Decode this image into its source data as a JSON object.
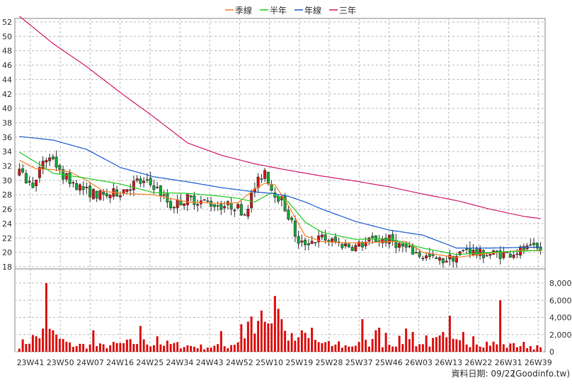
{
  "chart_data": {
    "type": "candlestick+volume",
    "legend": {
      "placement": "top-center",
      "items": [
        {
          "key": "ma_quarter",
          "label": "季線",
          "color": "#ff7f27"
        },
        {
          "key": "ma_half",
          "label": "半年",
          "color": "#22cc22"
        },
        {
          "key": "ma_year",
          "label": "年線",
          "color": "#1f5fd0"
        },
        {
          "key": "ma_3year",
          "label": "三年",
          "color": "#d01f6f"
        }
      ]
    },
    "price_axis": {
      "min": 18,
      "max": 52,
      "ticks": [
        18,
        20,
        22,
        24,
        26,
        28,
        30,
        32,
        34,
        36,
        38,
        40,
        42,
        44,
        46,
        48,
        50,
        52
      ]
    },
    "volume_axis": {
      "min": 0,
      "max": 8000,
      "ticks": [
        0,
        2000,
        4000,
        6000,
        8000
      ],
      "tick_labels": [
        "0",
        "2,000",
        "4,000",
        "6,000",
        "8,000"
      ]
    },
    "x_axis_labels": [
      "23W41",
      "23W50",
      "24W07",
      "24W16",
      "24W25",
      "24W34",
      "24W43",
      "24W52",
      "25W10",
      "25W19",
      "25W28",
      "25W37",
      "25W46",
      "26W03",
      "26W13",
      "26W22",
      "26W31",
      "26W39"
    ],
    "weeks": 156,
    "grid": true,
    "series": {
      "ma_3year": {
        "points": [
          [
            0,
            52.8
          ],
          [
            10,
            49.0
          ],
          [
            20,
            45.8
          ],
          [
            30,
            42.2
          ],
          [
            40,
            38.8
          ],
          [
            50,
            35.2
          ],
          [
            60,
            33.5
          ],
          [
            70,
            32.3
          ],
          [
            80,
            31.4
          ],
          [
            90,
            30.6
          ],
          [
            100,
            29.9
          ],
          [
            110,
            29.1
          ],
          [
            120,
            28.1
          ],
          [
            130,
            27.2
          ],
          [
            140,
            26.0
          ],
          [
            150,
            25.0
          ],
          [
            155,
            24.7
          ]
        ]
      },
      "ma_year": {
        "points": [
          [
            0,
            36.1
          ],
          [
            10,
            35.6
          ],
          [
            20,
            34.3
          ],
          [
            30,
            31.8
          ],
          [
            40,
            30.5
          ],
          [
            50,
            29.8
          ],
          [
            60,
            29.0
          ],
          [
            70,
            28.4
          ],
          [
            75,
            28.2
          ],
          [
            80,
            27.8
          ],
          [
            85,
            27.0
          ],
          [
            90,
            26.0
          ],
          [
            100,
            24.3
          ],
          [
            110,
            23.1
          ],
          [
            120,
            22.4
          ],
          [
            130,
            20.6
          ],
          [
            140,
            20.6
          ],
          [
            150,
            20.7
          ],
          [
            155,
            20.7
          ]
        ]
      },
      "ma_half": {
        "points": [
          [
            0,
            33.9
          ],
          [
            5,
            32.5
          ],
          [
            10,
            31.0
          ],
          [
            20,
            30.3
          ],
          [
            30,
            29.5
          ],
          [
            40,
            28.3
          ],
          [
            50,
            28.2
          ],
          [
            60,
            27.8
          ],
          [
            65,
            27.5
          ],
          [
            70,
            27.0
          ],
          [
            75,
            28.3
          ],
          [
            80,
            27.0
          ],
          [
            85,
            24.2
          ],
          [
            90,
            22.8
          ],
          [
            100,
            21.8
          ],
          [
            110,
            21.9
          ],
          [
            120,
            20.6
          ],
          [
            130,
            19.7
          ],
          [
            140,
            20.0
          ],
          [
            150,
            20.2
          ],
          [
            155,
            20.3
          ]
        ]
      },
      "ma_quarter": {
        "points": [
          [
            0,
            32.8
          ],
          [
            5,
            31.6
          ],
          [
            10,
            31.5
          ],
          [
            15,
            31.2
          ],
          [
            20,
            30.0
          ],
          [
            25,
            28.5
          ],
          [
            30,
            28.2
          ],
          [
            40,
            28.0
          ],
          [
            50,
            27.0
          ],
          [
            60,
            26.8
          ],
          [
            65,
            26.9
          ],
          [
            70,
            28.8
          ],
          [
            73,
            29.6
          ],
          [
            76,
            29.4
          ],
          [
            80,
            26.5
          ],
          [
            85,
            22.3
          ],
          [
            90,
            21.5
          ],
          [
            100,
            21.3
          ],
          [
            110,
            21.5
          ],
          [
            115,
            21.5
          ],
          [
            120,
            20.0
          ],
          [
            130,
            19.3
          ],
          [
            140,
            19.9
          ],
          [
            150,
            20.3
          ],
          [
            155,
            20.2
          ]
        ]
      },
      "close": {
        "anchors": [
          [
            0,
            31.0
          ],
          [
            3,
            29.5
          ],
          [
            5,
            29.8
          ],
          [
            7,
            32.8
          ],
          [
            10,
            33.2
          ],
          [
            12,
            31.0
          ],
          [
            15,
            30.0
          ],
          [
            20,
            28.5
          ],
          [
            25,
            27.8
          ],
          [
            30,
            28.5
          ],
          [
            35,
            29.8
          ],
          [
            40,
            29.3
          ],
          [
            45,
            26.5
          ],
          [
            50,
            27.5
          ],
          [
            55,
            27.0
          ],
          [
            60,
            26.5
          ],
          [
            64,
            26.5
          ],
          [
            67,
            25.5
          ],
          [
            70,
            29.0
          ],
          [
            73,
            31.5
          ],
          [
            75,
            28.8
          ],
          [
            78,
            27.2
          ],
          [
            81,
            24.0
          ],
          [
            83,
            21.0
          ],
          [
            86,
            21.5
          ],
          [
            90,
            22.0
          ],
          [
            95,
            21.2
          ],
          [
            100,
            20.8
          ],
          [
            105,
            21.7
          ],
          [
            110,
            21.8
          ],
          [
            115,
            20.5
          ],
          [
            120,
            19.5
          ],
          [
            125,
            18.8
          ],
          [
            130,
            19.5
          ],
          [
            133,
            20.5
          ],
          [
            136,
            19.8
          ],
          [
            140,
            19.8
          ],
          [
            145,
            19.8
          ],
          [
            150,
            20.4
          ],
          [
            155,
            20.4
          ]
        ]
      },
      "volume": {
        "anchors": [
          [
            0,
            800
          ],
          [
            8,
            2300
          ],
          [
            15,
            800
          ],
          [
            25,
            650
          ],
          [
            35,
            1100
          ],
          [
            45,
            850
          ],
          [
            55,
            550
          ],
          [
            62,
            650
          ],
          [
            67,
            1700
          ],
          [
            70,
            2600
          ],
          [
            73,
            3000
          ],
          [
            76,
            3300
          ],
          [
            78,
            2500
          ],
          [
            81,
            1500
          ],
          [
            83,
            1200
          ],
          [
            86,
            1400
          ],
          [
            90,
            1000
          ],
          [
            95,
            600
          ],
          [
            100,
            800
          ],
          [
            105,
            1100
          ],
          [
            110,
            900
          ],
          [
            115,
            1400
          ],
          [
            120,
            800
          ],
          [
            125,
            1300
          ],
          [
            130,
            1000
          ],
          [
            135,
            1200
          ],
          [
            140,
            1000
          ],
          [
            145,
            650
          ],
          [
            150,
            800
          ],
          [
            155,
            450
          ]
        ]
      },
      "volume_spikes": [
        [
          8,
          8000
        ],
        [
          10,
          2500
        ],
        [
          11,
          2000
        ],
        [
          22,
          2500
        ],
        [
          36,
          3000
        ],
        [
          41,
          1800
        ],
        [
          60,
          2400
        ],
        [
          66,
          3200
        ],
        [
          68,
          3500
        ],
        [
          69,
          4100
        ],
        [
          71,
          3600
        ],
        [
          72,
          4800
        ],
        [
          73,
          3500
        ],
        [
          74,
          3300
        ],
        [
          76,
          6500
        ],
        [
          77,
          5000
        ],
        [
          78,
          3800
        ],
        [
          84,
          2500
        ],
        [
          85,
          2200
        ],
        [
          87,
          2800
        ],
        [
          95,
          1200
        ],
        [
          102,
          3800
        ],
        [
          106,
          2500
        ],
        [
          107,
          2800
        ],
        [
          109,
          2200
        ],
        [
          115,
          2700
        ],
        [
          117,
          2300
        ],
        [
          121,
          1900
        ],
        [
          125,
          1900
        ],
        [
          126,
          2300
        ],
        [
          128,
          4200
        ],
        [
          132,
          2300
        ],
        [
          135,
          1800
        ],
        [
          143,
          6000
        ],
        [
          147,
          1000
        ]
      ],
      "up_color": "#dd1111",
      "down_color": "#11aa33",
      "volume_color": "#dd1111"
    }
  },
  "footer": {
    "date_label": "資料日期: 09/22",
    "source": "(Goodinfo.tw)"
  }
}
